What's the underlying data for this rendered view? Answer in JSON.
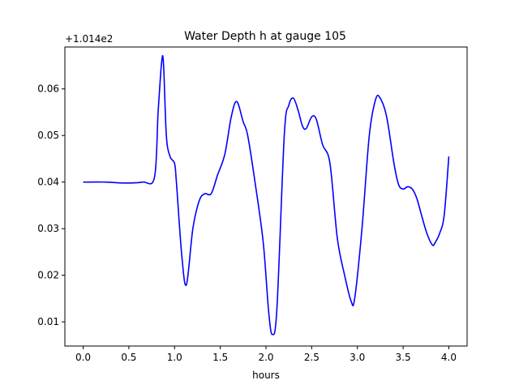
{
  "chart_data": {
    "type": "line",
    "title": "Water Depth h at gauge 105",
    "xlabel": "hours",
    "ylabel": "",
    "y_offset_label": "+1.014e2",
    "xlim": [
      -0.2,
      4.2
    ],
    "ylim": [
      0.0048,
      0.069
    ],
    "xticks": [
      0.0,
      0.5,
      1.0,
      1.5,
      2.0,
      2.5,
      3.0,
      3.5,
      4.0
    ],
    "xtick_labels": [
      "0.0",
      "0.5",
      "1.0",
      "1.5",
      "2.0",
      "2.5",
      "3.0",
      "3.5",
      "4.0"
    ],
    "yticks": [
      0.01,
      0.02,
      0.03,
      0.04,
      0.05,
      0.06
    ],
    "ytick_labels": [
      "0.01",
      "0.02",
      "0.03",
      "0.04",
      "0.05",
      "0.06"
    ],
    "grid": false,
    "series": [
      {
        "color": "#0000ff",
        "x": [
          0.0,
          0.25,
          0.45,
          0.65,
          0.78,
          0.82,
          0.86,
          0.88,
          0.91,
          0.95,
          1.0,
          1.02,
          1.08,
          1.13,
          1.2,
          1.27,
          1.33,
          1.4,
          1.47,
          1.55,
          1.62,
          1.68,
          1.75,
          1.8,
          1.88,
          1.97,
          2.03,
          2.07,
          2.12,
          2.2,
          2.25,
          2.3,
          2.35,
          2.4,
          2.44,
          2.5,
          2.55,
          2.62,
          2.7,
          2.78,
          2.86,
          2.93,
          2.97,
          3.05,
          3.13,
          3.2,
          3.25,
          3.32,
          3.4,
          3.45,
          3.5,
          3.55,
          3.6,
          3.65,
          3.7,
          3.76,
          3.82,
          3.85,
          3.9,
          3.95,
          4.0
        ],
        "y": [
          0.04,
          0.04,
          0.0398,
          0.04,
          0.041,
          0.055,
          0.066,
          0.065,
          0.05,
          0.0455,
          0.044,
          0.04,
          0.024,
          0.018,
          0.03,
          0.036,
          0.0375,
          0.0375,
          0.0415,
          0.046,
          0.054,
          0.0573,
          0.053,
          0.05,
          0.04,
          0.027,
          0.012,
          0.0073,
          0.013,
          0.05,
          0.0565,
          0.058,
          0.0555,
          0.052,
          0.0515,
          0.054,
          0.0535,
          0.048,
          0.044,
          0.028,
          0.02,
          0.0145,
          0.015,
          0.03,
          0.05,
          0.0578,
          0.058,
          0.054,
          0.044,
          0.0395,
          0.0385,
          0.039,
          0.0385,
          0.0365,
          0.033,
          0.029,
          0.0265,
          0.027,
          0.029,
          0.033,
          0.0455
        ]
      }
    ]
  }
}
